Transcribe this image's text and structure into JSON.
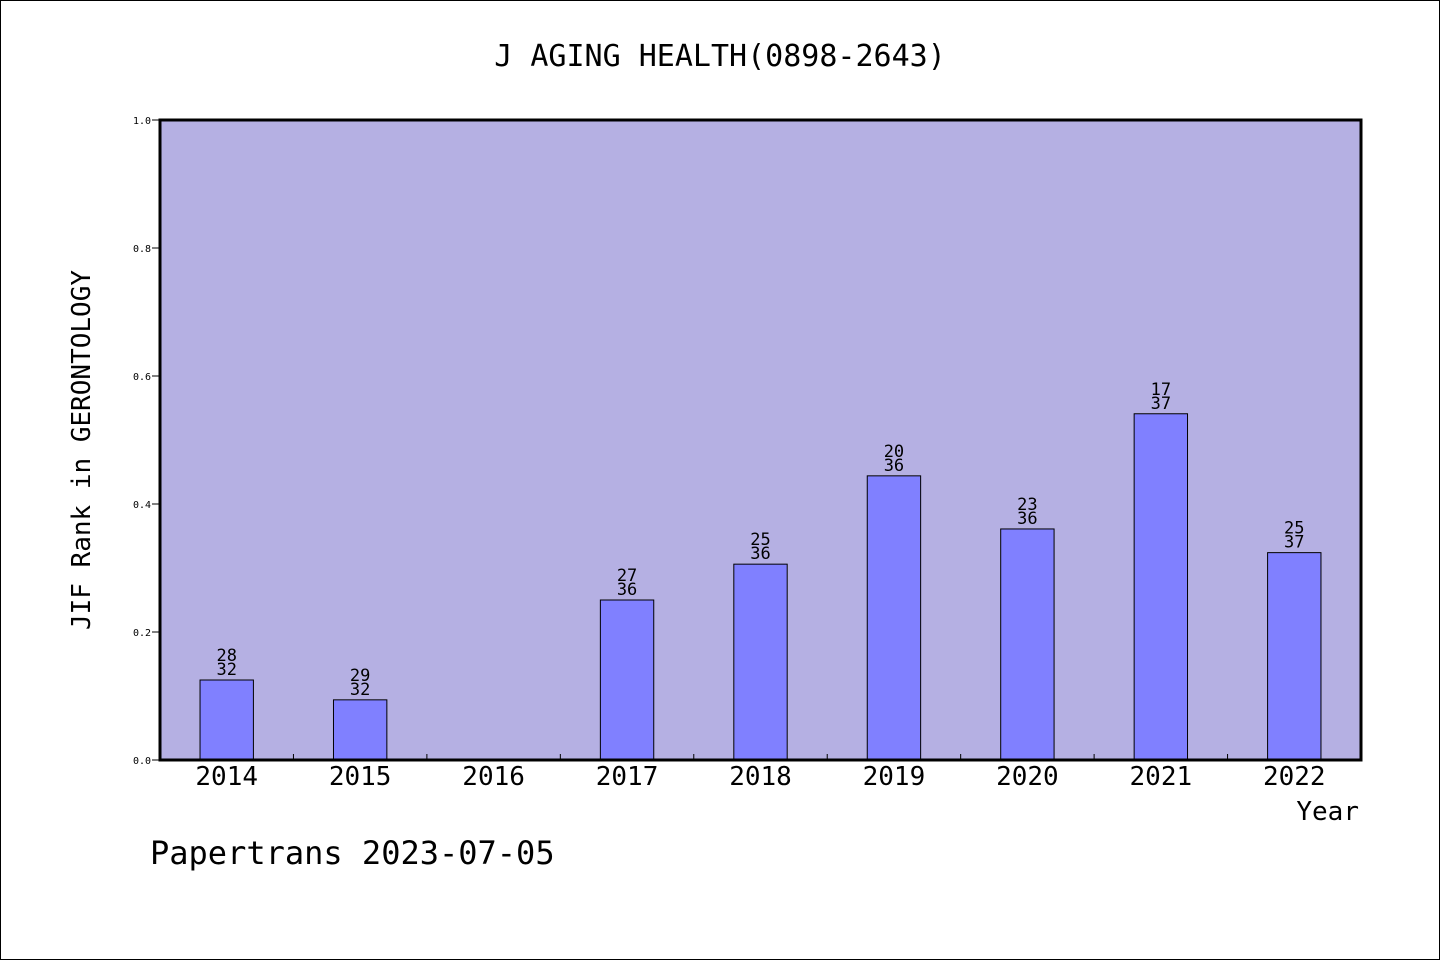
{
  "chart_data": {
    "type": "bar",
    "title": "J AGING HEALTH(0898-2643)",
    "xlabel": "Year",
    "ylabel": "JIF Rank in GERONTOLOGY",
    "ylim": [
      0,
      1.0
    ],
    "yticks": [
      "0.0",
      "0.2",
      "0.4",
      "0.6",
      "0.8",
      "1.0"
    ],
    "categories": [
      "2014",
      "2015",
      "2016",
      "2017",
      "2018",
      "2019",
      "2020",
      "2021",
      "2022"
    ],
    "values": [
      0.125,
      0.094,
      null,
      0.25,
      0.306,
      0.444,
      0.361,
      0.541,
      0.324
    ],
    "rank_labels": [
      {
        "rank": "28",
        "total": "32"
      },
      {
        "rank": "29",
        "total": "32"
      },
      null,
      {
        "rank": "27",
        "total": "36"
      },
      {
        "rank": "25",
        "total": "36"
      },
      {
        "rank": "20",
        "total": "36"
      },
      {
        "rank": "23",
        "total": "36"
      },
      {
        "rank": "17",
        "total": "37"
      },
      {
        "rank": "25",
        "total": "37"
      }
    ],
    "grid": false,
    "colors": {
      "plot_background": "#b5b0e3",
      "bar_fill": "#8080ff",
      "bar_stroke": "#000000"
    }
  },
  "footer": {
    "text": "Papertrans 2023-07-05"
  }
}
